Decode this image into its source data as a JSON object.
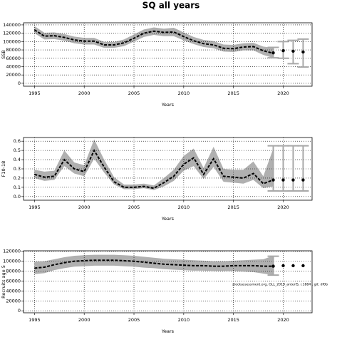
{
  "title": "SQ all years",
  "chart_data": [
    {
      "type": "line",
      "ylabel": "SSB",
      "xlabel": "Years",
      "color": "#000000",
      "band_color": "#b0b0b0",
      "grid": true,
      "xlim": [
        1993.9,
        2022.9
      ],
      "xticks": [
        1995,
        2000,
        2005,
        2010,
        2015,
        2020
      ],
      "ylim": [
        -7000,
        145000
      ],
      "yticks": [
        0,
        20000,
        40000,
        60000,
        80000,
        100000,
        120000,
        140000
      ],
      "x": [
        1995,
        1996,
        1997,
        1998,
        1999,
        2000,
        2001,
        2002,
        2003,
        2004,
        2005,
        2006,
        2007,
        2008,
        2009,
        2010,
        2011,
        2012,
        2013,
        2014,
        2015,
        2016,
        2017,
        2018,
        2019
      ],
      "values": [
        128000,
        113000,
        114000,
        110000,
        104000,
        101000,
        101000,
        92000,
        92000,
        97000,
        108000,
        120000,
        125000,
        122000,
        123000,
        112000,
        102000,
        95000,
        92000,
        84000,
        83000,
        87000,
        88000,
        78000,
        72000
      ],
      "lower": [
        120000,
        105000,
        106000,
        102000,
        96000,
        93000,
        93000,
        85000,
        85000,
        89000,
        100000,
        111000,
        116000,
        113000,
        113000,
        103000,
        94000,
        87000,
        84000,
        76000,
        75000,
        79000,
        79000,
        68000,
        61000
      ],
      "upper": [
        137000,
        121000,
        122000,
        118000,
        112000,
        109000,
        109000,
        99000,
        99000,
        105000,
        117000,
        129000,
        134000,
        131000,
        133000,
        122000,
        111000,
        104000,
        101000,
        93000,
        92000,
        96000,
        97000,
        88000,
        85000
      ],
      "projection": {
        "x": [
          2019,
          2020,
          2021,
          2022
        ],
        "values": [
          73000,
          78000,
          77000,
          75000
        ],
        "low": [
          61000,
          60000,
          47000,
          39000
        ],
        "high": [
          86000,
          100000,
          103000,
          106000
        ]
      }
    },
    {
      "type": "line",
      "ylabel": "F10-18",
      "xlabel": "Years",
      "color": "#000000",
      "band_color": "#b0b0b0",
      "grid": true,
      "xlim": [
        1993.9,
        2022.9
      ],
      "xticks": [
        1995,
        2000,
        2005,
        2010,
        2015,
        2020
      ],
      "ylim": [
        -0.04,
        0.64
      ],
      "yticks": [
        {
          "value": 0,
          "label": "0.0"
        },
        0.1,
        0.2,
        0.3,
        0.4,
        0.5,
        0.6
      ],
      "x": [
        1995,
        1996,
        1997,
        1998,
        1999,
        2000,
        2001,
        2002,
        2003,
        2004,
        2005,
        2006,
        2007,
        2008,
        2009,
        2010,
        2011,
        2012,
        2013,
        2014,
        2015,
        2016,
        2017,
        2018,
        2019
      ],
      "values": [
        0.24,
        0.21,
        0.22,
        0.4,
        0.3,
        0.27,
        0.5,
        0.32,
        0.16,
        0.1,
        0.1,
        0.11,
        0.09,
        0.15,
        0.22,
        0.35,
        0.42,
        0.24,
        0.41,
        0.22,
        0.21,
        0.2,
        0.25,
        0.14,
        0.18
      ],
      "lower": [
        0.2,
        0.17,
        0.18,
        0.33,
        0.25,
        0.22,
        0.41,
        0.26,
        0.13,
        0.08,
        0.08,
        0.09,
        0.07,
        0.11,
        0.17,
        0.28,
        0.33,
        0.19,
        0.32,
        0.16,
        0.15,
        0.14,
        0.18,
        0.09,
        0.11
      ],
      "upper": [
        0.29,
        0.27,
        0.28,
        0.5,
        0.37,
        0.34,
        0.62,
        0.4,
        0.21,
        0.13,
        0.13,
        0.14,
        0.12,
        0.2,
        0.29,
        0.44,
        0.52,
        0.31,
        0.54,
        0.3,
        0.29,
        0.29,
        0.38,
        0.22,
        0.52
      ],
      "projection": {
        "x": [
          2019,
          2020,
          2021,
          2022
        ],
        "values": [
          0.18,
          0.18,
          0.18,
          0.18
        ],
        "low": [
          0.06,
          0.06,
          0.06,
          0.06
        ],
        "high": [
          0.55,
          0.55,
          0.55,
          0.55
        ]
      }
    },
    {
      "type": "line",
      "ylabel": "Recruits age 5",
      "xlabel": "Years",
      "color": "#000000",
      "band_color": "#b0b0b0",
      "grid": true,
      "annotation": "stockassessment.org, GLL_2019_anterIS, r.1884 , git: df0b",
      "xlim": [
        1993.9,
        2022.9
      ],
      "xticks": [
        1995,
        2000,
        2005,
        2010,
        2015,
        2020
      ],
      "ylim": [
        -4000,
        121000
      ],
      "yticks": [
        0,
        20000,
        40000,
        60000,
        80000,
        100000,
        120000
      ],
      "x": [
        1995,
        1996,
        1997,
        1998,
        1999,
        2000,
        2001,
        2002,
        2003,
        2004,
        2005,
        2006,
        2007,
        2008,
        2009,
        2010,
        2011,
        2012,
        2013,
        2014,
        2015,
        2016,
        2017,
        2018,
        2019
      ],
      "values": [
        86000,
        88000,
        93000,
        97000,
        100000,
        101000,
        102000,
        102000,
        102000,
        101000,
        100000,
        98000,
        96000,
        94000,
        93000,
        92000,
        91000,
        91000,
        90000,
        90000,
        91000,
        91000,
        91000,
        90000,
        90000
      ],
      "lower": [
        74000,
        76000,
        82000,
        86000,
        89000,
        90000,
        91000,
        91000,
        91000,
        90000,
        89000,
        87000,
        86000,
        84000,
        83000,
        82000,
        81000,
        81000,
        80000,
        80000,
        80000,
        79000,
        78000,
        75000,
        72000
      ],
      "upper": [
        99000,
        100000,
        104000,
        108000,
        111000,
        112000,
        113000,
        113000,
        113000,
        112000,
        111000,
        109000,
        107000,
        105000,
        104000,
        103000,
        102000,
        101000,
        100000,
        100000,
        101000,
        102000,
        103000,
        104000,
        111000
      ],
      "projection": {
        "x": [
          2019,
          2020,
          2021,
          2022
        ],
        "values": [
          90000,
          91000,
          91000,
          91000
        ],
        "low": [
          72000,
          null,
          null,
          null
        ],
        "high": [
          110000,
          null,
          null,
          null
        ]
      }
    }
  ]
}
